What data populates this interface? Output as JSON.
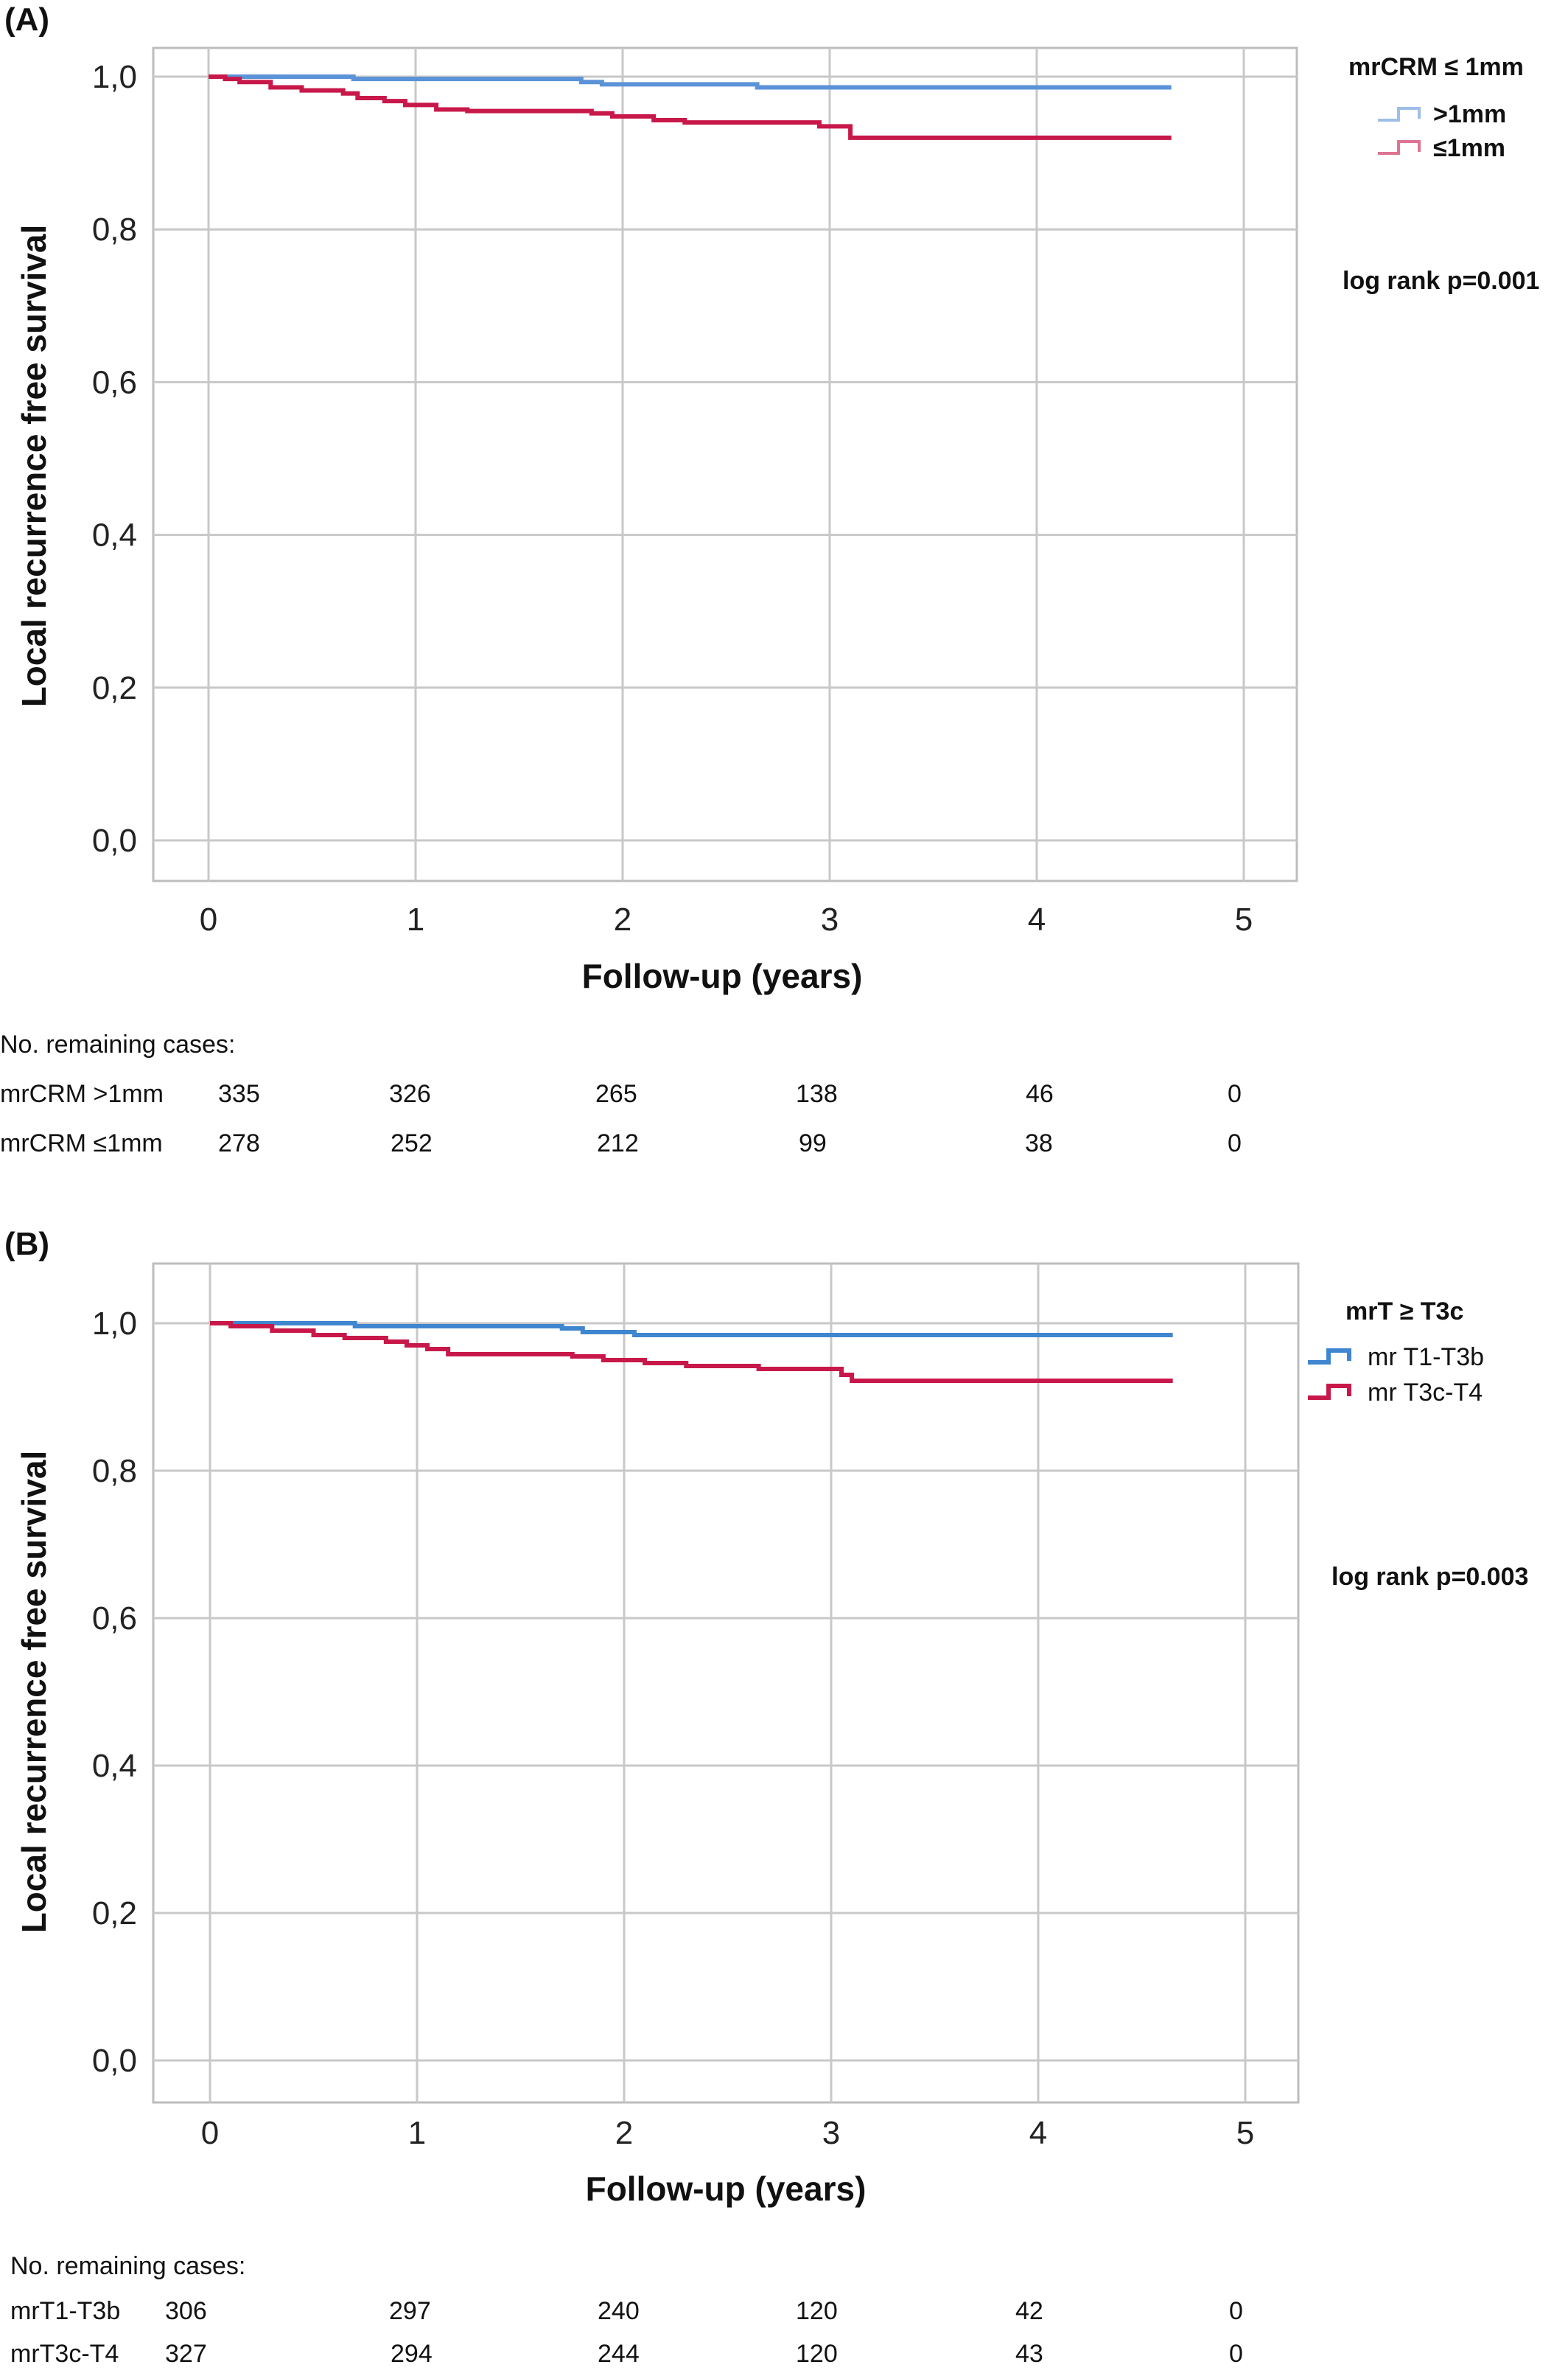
{
  "chart_data": [
    {
      "type": "line",
      "panel_label": "(A)",
      "xlabel": "Follow-up (years)",
      "ylabel": "Local recurrence free survival",
      "xlim": [
        0,
        5
      ],
      "ylim": [
        0,
        1
      ],
      "x_ticks": [
        "0",
        "1",
        "2",
        "3",
        "4",
        "5"
      ],
      "y_ticks": [
        "0,0",
        "0,2",
        "0,4",
        "0,6",
        "0,8",
        "1,0"
      ],
      "grid": true,
      "legend": {
        "title": "mrCRM ≤ 1mm",
        "placement": "top-right",
        "bold_labels": true
      },
      "annotation": "log rank p=0.001",
      "series": [
        {
          "name": ">1mm",
          "color": "#5b93d8",
          "x": [
            0,
            0.7,
            1.8,
            1.9,
            2.65,
            4.65
          ],
          "y": [
            1.0,
            0.997,
            0.993,
            0.99,
            0.986,
            0.986
          ]
        },
        {
          "name": "≤1mm",
          "color": "#c8184a",
          "x": [
            0,
            0.08,
            0.15,
            0.3,
            0.45,
            0.65,
            0.72,
            0.85,
            0.95,
            1.1,
            1.25,
            1.85,
            1.95,
            2.15,
            2.3,
            2.95,
            3.1,
            4.65
          ],
          "y": [
            1.0,
            0.997,
            0.993,
            0.986,
            0.982,
            0.978,
            0.972,
            0.968,
            0.963,
            0.957,
            0.955,
            0.952,
            0.948,
            0.943,
            0.94,
            0.935,
            0.92,
            0.92
          ]
        }
      ],
      "risk_table": {
        "title": "No. remaining cases:",
        "rows": [
          {
            "label": "mrCRM >1mm",
            "values": [
              "335",
              "326",
              "265",
              "138",
              "46",
              "0"
            ]
          },
          {
            "label": "mrCRM ≤1mm",
            "values": [
              "278",
              "252",
              "212",
              "99",
              "38",
              "0"
            ]
          }
        ]
      }
    },
    {
      "type": "line",
      "panel_label": "(B)",
      "xlabel": "Follow-up (years)",
      "ylabel": "Local recurrence free survival",
      "xlim": [
        0,
        5
      ],
      "ylim": [
        0,
        1
      ],
      "x_ticks": [
        "0",
        "1",
        "2",
        "3",
        "4",
        "5"
      ],
      "y_ticks": [
        "0,0",
        "0,2",
        "0,4",
        "0,6",
        "0,8",
        "1,0"
      ],
      "grid": true,
      "legend": {
        "title": "mrT  ≥ T3c",
        "placement": "top-right",
        "bold_labels": false
      },
      "annotation": "log rank p=0.003",
      "series": [
        {
          "name": "mr T1-T3b",
          "color": "#3f86d0",
          "x": [
            0,
            0.7,
            1.7,
            1.8,
            2.05,
            4.65
          ],
          "y": [
            1.0,
            0.996,
            0.993,
            0.988,
            0.984,
            0.984
          ]
        },
        {
          "name": "mr T3c-T4",
          "color": "#c8184a",
          "x": [
            0,
            0.1,
            0.3,
            0.5,
            0.65,
            0.85,
            0.95,
            1.05,
            1.15,
            1.75,
            1.9,
            2.1,
            2.3,
            2.65,
            3.05,
            3.1,
            4.65
          ],
          "y": [
            1.0,
            0.996,
            0.99,
            0.984,
            0.98,
            0.975,
            0.97,
            0.965,
            0.958,
            0.955,
            0.95,
            0.946,
            0.942,
            0.938,
            0.93,
            0.922,
            0.922
          ]
        }
      ],
      "risk_table": {
        "title": "No. remaining cases:",
        "rows": [
          {
            "label": "mrT1-T3b",
            "values": [
              "306",
              "297",
              "240",
              "120",
              "42",
              "0"
            ]
          },
          {
            "label": "mrT3c-T4",
            "values": [
              "327",
              "294",
              "244",
              "120",
              "43",
              "0"
            ]
          }
        ]
      }
    }
  ]
}
